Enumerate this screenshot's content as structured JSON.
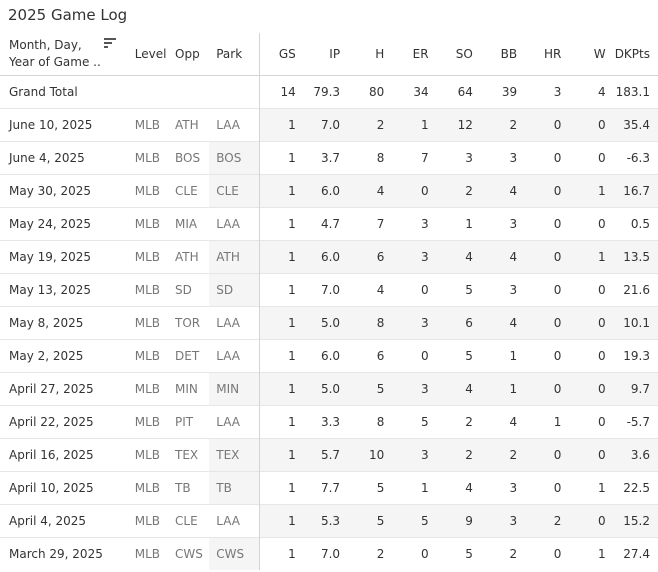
{
  "title": "2025 Game Log",
  "headers": {
    "month_day": "Month, Day,",
    "year_of_game": "Year of Game ..",
    "level": "Level",
    "opp": "Opp",
    "park": "Park",
    "gs": "GS",
    "ip": "IP",
    "h": "H",
    "er": "ER",
    "so": "SO",
    "bb": "BB",
    "hr": "HR",
    "w": "W",
    "dkpts": "DKPts"
  },
  "sort_icon": "sort-icon",
  "total": {
    "label": "Grand Total",
    "gs": "14",
    "ip": "79.3",
    "h": "80",
    "er": "34",
    "so": "64",
    "bb": "39",
    "hr": "3",
    "w": "4",
    "dkpts": "183.1"
  },
  "rows": [
    {
      "date": "June 10, 2025",
      "level": "MLB",
      "opp": "ATH",
      "park": "LAA",
      "gs": "1",
      "ip": "7.0",
      "h": "2",
      "er": "1",
      "so": "12",
      "bb": "2",
      "hr": "0",
      "w": "0",
      "dkpts": "35.4"
    },
    {
      "date": "June 4, 2025",
      "level": "MLB",
      "opp": "BOS",
      "park": "BOS",
      "gs": "1",
      "ip": "3.7",
      "h": "8",
      "er": "7",
      "so": "3",
      "bb": "3",
      "hr": "0",
      "w": "0",
      "dkpts": "-6.3"
    },
    {
      "date": "May 30, 2025",
      "level": "MLB",
      "opp": "CLE",
      "park": "CLE",
      "gs": "1",
      "ip": "6.0",
      "h": "4",
      "er": "0",
      "so": "2",
      "bb": "4",
      "hr": "0",
      "w": "1",
      "dkpts": "16.7"
    },
    {
      "date": "May 24, 2025",
      "level": "MLB",
      "opp": "MIA",
      "park": "LAA",
      "gs": "1",
      "ip": "4.7",
      "h": "7",
      "er": "3",
      "so": "1",
      "bb": "3",
      "hr": "0",
      "w": "0",
      "dkpts": "0.5"
    },
    {
      "date": "May 19, 2025",
      "level": "MLB",
      "opp": "ATH",
      "park": "ATH",
      "gs": "1",
      "ip": "6.0",
      "h": "6",
      "er": "3",
      "so": "4",
      "bb": "4",
      "hr": "0",
      "w": "1",
      "dkpts": "13.5"
    },
    {
      "date": "May 13, 2025",
      "level": "MLB",
      "opp": "SD",
      "park": "SD",
      "gs": "1",
      "ip": "7.0",
      "h": "4",
      "er": "0",
      "so": "5",
      "bb": "3",
      "hr": "0",
      "w": "0",
      "dkpts": "21.6"
    },
    {
      "date": "May 8, 2025",
      "level": "MLB",
      "opp": "TOR",
      "park": "LAA",
      "gs": "1",
      "ip": "5.0",
      "h": "8",
      "er": "3",
      "so": "6",
      "bb": "4",
      "hr": "0",
      "w": "0",
      "dkpts": "10.1"
    },
    {
      "date": "May 2, 2025",
      "level": "MLB",
      "opp": "DET",
      "park": "LAA",
      "gs": "1",
      "ip": "6.0",
      "h": "6",
      "er": "0",
      "so": "5",
      "bb": "1",
      "hr": "0",
      "w": "0",
      "dkpts": "19.3"
    },
    {
      "date": "April 27, 2025",
      "level": "MLB",
      "opp": "MIN",
      "park": "MIN",
      "gs": "1",
      "ip": "5.0",
      "h": "5",
      "er": "3",
      "so": "4",
      "bb": "1",
      "hr": "0",
      "w": "0",
      "dkpts": "9.7"
    },
    {
      "date": "April 22, 2025",
      "level": "MLB",
      "opp": "PIT",
      "park": "LAA",
      "gs": "1",
      "ip": "3.3",
      "h": "8",
      "er": "5",
      "so": "2",
      "bb": "4",
      "hr": "1",
      "w": "0",
      "dkpts": "-5.7"
    },
    {
      "date": "April 16, 2025",
      "level": "MLB",
      "opp": "TEX",
      "park": "TEX",
      "gs": "1",
      "ip": "5.7",
      "h": "10",
      "er": "3",
      "so": "2",
      "bb": "2",
      "hr": "0",
      "w": "0",
      "dkpts": "3.6"
    },
    {
      "date": "April 10, 2025",
      "level": "MLB",
      "opp": "TB",
      "park": "TB",
      "gs": "1",
      "ip": "7.7",
      "h": "5",
      "er": "1",
      "so": "4",
      "bb": "3",
      "hr": "0",
      "w": "1",
      "dkpts": "22.5"
    },
    {
      "date": "April 4, 2025",
      "level": "MLB",
      "opp": "CLE",
      "park": "LAA",
      "gs": "1",
      "ip": "5.3",
      "h": "5",
      "er": "5",
      "so": "9",
      "bb": "3",
      "hr": "2",
      "w": "0",
      "dkpts": "15.2"
    },
    {
      "date": "March 29, 2025",
      "level": "MLB",
      "opp": "CWS",
      "park": "CWS",
      "gs": "1",
      "ip": "7.0",
      "h": "2",
      "er": "0",
      "so": "5",
      "bb": "2",
      "hr": "0",
      "w": "1",
      "dkpts": "27.4"
    }
  ]
}
